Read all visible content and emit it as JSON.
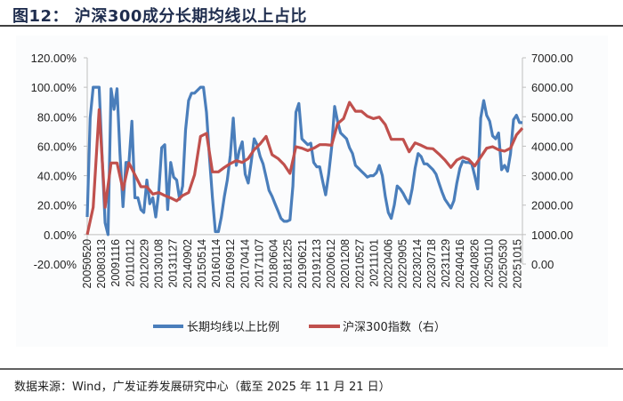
{
  "title": "图12： 沪深300成分长期均线以上占比",
  "source": "数据来源：Wind，广发证券发展研究中心（截至 2025 年 11 月 21 日）",
  "chart_data": {
    "type": "line",
    "title": "",
    "grid": false,
    "legend_position": "bottom",
    "x_tick_labels": [
      "20050520",
      "20080313",
      "20091116",
      "20110112",
      "20120229",
      "20130108",
      "20131127",
      "20140902",
      "20150514",
      "20160114",
      "20160912",
      "20170414",
      "20171107",
      "20180604",
      "20181225",
      "20190621",
      "20191213",
      "20200612",
      "20201208",
      "20210527",
      "20211101",
      "20220406",
      "20220905",
      "20230214",
      "20230718",
      "20231129",
      "20240416",
      "20240826",
      "20250110",
      "20250530",
      "20251015"
    ],
    "y_left": {
      "ticks": [
        "-20.00%",
        "0.00%",
        "20.00%",
        "40.00%",
        "60.00%",
        "80.00%",
        "100.00%",
        "120.00%"
      ],
      "range": [
        -20,
        120
      ],
      "unit": "%"
    },
    "y_right": {
      "ticks": [
        "0.00",
        "1000.00",
        "2000.00",
        "3000.00",
        "4000.00",
        "5000.00",
        "6000.00",
        "7000.00"
      ],
      "range": [
        0,
        7000
      ]
    },
    "series": [
      {
        "name": "长期均线以上比例",
        "axis": "left",
        "color": "#4a7ebb",
        "values": [
          12,
          79,
          100,
          100,
          100,
          53,
          8,
          0,
          99,
          85,
          99,
          55,
          19,
          49,
          49,
          77,
          25,
          25,
          17,
          15,
          37,
          21,
          25,
          12,
          29,
          59,
          61,
          17,
          49,
          39,
          37,
          24,
          33,
          71,
          91,
          96,
          96,
          98,
          100,
          100,
          83,
          53,
          25,
          2,
          2,
          12,
          26,
          37,
          54,
          79,
          47,
          57,
          63,
          41,
          35,
          49,
          65,
          61,
          53,
          48,
          39,
          30,
          26,
          21,
          16,
          11,
          9,
          9,
          10,
          33,
          83,
          89,
          65,
          63,
          61,
          62,
          49,
          46,
          46,
          36,
          27,
          41,
          59,
          87,
          77,
          69,
          67,
          65,
          59,
          55,
          47,
          45,
          43,
          41,
          39,
          40,
          40,
          42,
          47,
          40,
          26,
          15,
          11,
          20,
          33,
          31,
          28,
          24,
          21,
          31,
          45,
          55,
          53,
          48,
          48,
          46,
          44,
          41,
          35,
          29,
          24,
          21,
          18,
          23,
          35,
          45,
          50,
          49,
          49,
          48,
          40,
          31,
          79,
          91,
          81,
          77,
          67,
          65,
          69,
          44,
          47,
          43,
          55,
          78,
          81,
          76,
          76
        ]
      },
      {
        "name": "沪深300指数（右）",
        "axis": "right",
        "color": "#c0504d",
        "values": [
          1000,
          1924,
          5237,
          1924,
          3430,
          3430,
          2526,
          3430,
          3028,
          2626,
          2626,
          2376,
          2426,
          2325,
          2245,
          2145,
          2325,
          2426,
          3028,
          4333,
          4434,
          3128,
          3128,
          3279,
          3410,
          3510,
          3450,
          3580,
          3881,
          4082,
          4333,
          3711,
          3580,
          3380,
          3078,
          3982,
          3932,
          3851,
          3932,
          4052,
          4052,
          4032,
          4765,
          4936,
          5488,
          5187,
          5187,
          5016,
          4936,
          4986,
          4735,
          4233,
          4233,
          4233,
          3811,
          4112,
          4032,
          3932,
          3912,
          3731,
          3530,
          3279,
          3530,
          3630,
          3550,
          3329,
          3630,
          3932,
          3982,
          3881,
          3831,
          3932,
          4383,
          4614
        ]
      }
    ]
  }
}
